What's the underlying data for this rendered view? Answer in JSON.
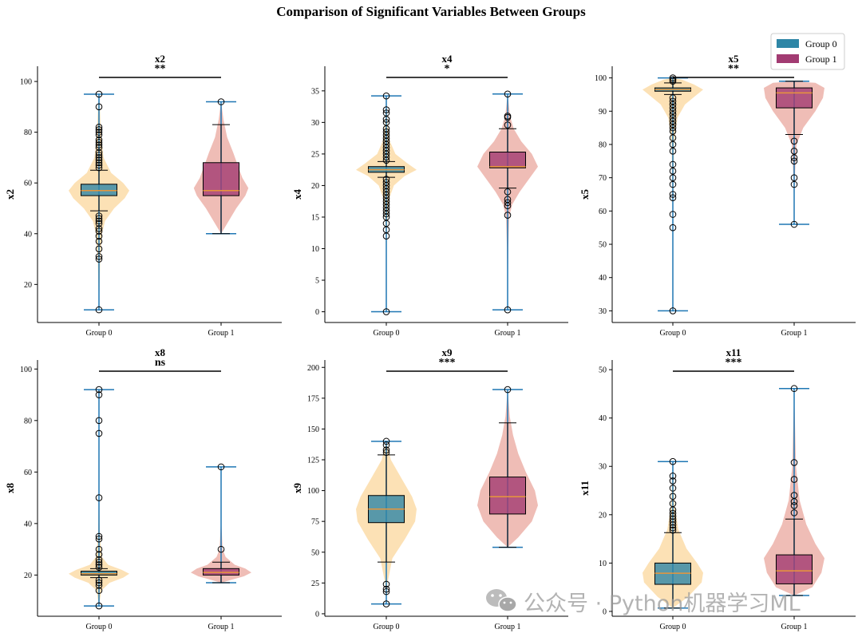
{
  "suptitle": "Comparison of Significant Variables Between Groups",
  "legend": [
    {
      "label": "Group 0",
      "color": "#2e86a6"
    },
    {
      "label": "Group 1",
      "color": "#a23b72"
    }
  ],
  "colors": {
    "violin0": "#fbd79c",
    "violin1": "#e9a79d",
    "box0": "#2e86a6",
    "box1": "#a23b72",
    "median": "#e8963b",
    "whisker": "#1f77b4"
  },
  "watermark": "公众号 · Python机器学习ML",
  "chart_data": [
    {
      "type": "violin+box",
      "title": "x2",
      "ylabel": "x2",
      "significance": "**",
      "categories": [
        "Group 0",
        "Group 1"
      ],
      "ylim": [
        5,
        106
      ],
      "yticks": [
        20,
        40,
        60,
        80,
        100
      ],
      "groups": [
        {
          "name": "Group 0",
          "min": 10,
          "q1": 55,
          "median": 57,
          "q3": 59.5,
          "max": 95,
          "whisker_low": 49,
          "whisker_high": 65,
          "outliers": [
            10,
            30,
            31,
            34,
            37,
            39,
            41,
            42,
            44,
            45,
            46,
            47,
            66,
            67,
            68,
            69,
            70,
            71,
            72,
            74,
            75,
            76,
            77,
            79,
            80,
            81,
            82,
            90,
            95
          ],
          "density": [
            [
              10,
              0.0
            ],
            [
              20,
              0.02
            ],
            [
              30,
              0.04
            ],
            [
              40,
              0.1
            ],
            [
              45,
              0.2
            ],
            [
              50,
              0.5
            ],
            [
              54,
              0.85
            ],
            [
              57,
              1.0
            ],
            [
              60,
              0.8
            ],
            [
              64,
              0.4
            ],
            [
              70,
              0.15
            ],
            [
              80,
              0.06
            ],
            [
              90,
              0.03
            ],
            [
              95,
              0.0
            ]
          ]
        },
        {
          "name": "Group 1",
          "min": 40,
          "q1": 55,
          "median": 57,
          "q3": 68,
          "max": 92,
          "whisker_low": 40,
          "whisker_high": 83,
          "outliers": [
            92
          ],
          "density": [
            [
              40,
              0.0
            ],
            [
              45,
              0.25
            ],
            [
              50,
              0.5
            ],
            [
              55,
              0.8
            ],
            [
              58,
              0.9
            ],
            [
              62,
              0.7
            ],
            [
              67,
              0.55
            ],
            [
              72,
              0.4
            ],
            [
              78,
              0.2
            ],
            [
              85,
              0.08
            ],
            [
              92,
              0.0
            ]
          ]
        }
      ]
    },
    {
      "type": "violin+box",
      "title": "x4",
      "ylabel": "x4",
      "significance": "*",
      "categories": [
        "Group 0",
        "Group 1"
      ],
      "ylim": [
        -1.7,
        38.9
      ],
      "yticks": [
        0,
        5,
        10,
        15,
        20,
        25,
        30,
        35
      ],
      "groups": [
        {
          "name": "Group 0",
          "min": 0,
          "q1": 22.1,
          "median": 22.5,
          "q3": 23,
          "max": 34.2,
          "whisker_low": 21.3,
          "whisker_high": 23.8,
          "outliers": [
            0,
            12,
            13,
            14,
            15,
            15.5,
            16,
            16.5,
            17,
            17.5,
            18,
            18.5,
            19,
            19.5,
            20,
            20.5,
            21,
            24,
            24.5,
            25,
            25.5,
            26,
            26.5,
            27,
            27.5,
            28,
            28.5,
            29,
            30,
            30.5,
            31.5,
            32,
            34.2
          ],
          "density": [
            [
              0,
              0.0
            ],
            [
              10,
              0.01
            ],
            [
              15,
              0.04
            ],
            [
              18,
              0.1
            ],
            [
              20,
              0.25
            ],
            [
              21.5,
              0.6
            ],
            [
              22.5,
              1.0
            ],
            [
              23.5,
              0.7
            ],
            [
              25,
              0.3
            ],
            [
              27,
              0.12
            ],
            [
              30,
              0.04
            ],
            [
              34.2,
              0.0
            ]
          ]
        },
        {
          "name": "Group 1",
          "min": 0.3,
          "q1": 22.8,
          "median": 23,
          "q3": 25.3,
          "max": 34.5,
          "whisker_low": 19.6,
          "whisker_high": 29,
          "outliers": [
            0.3,
            15.3,
            16.8,
            17.3,
            17.8,
            19,
            29.6,
            30.8,
            31,
            34.5
          ],
          "density": [
            [
              0.3,
              0.0
            ],
            [
              10,
              0.02
            ],
            [
              15,
              0.05
            ],
            [
              17,
              0.15
            ],
            [
              19,
              0.4
            ],
            [
              21,
              0.7
            ],
            [
              23,
              1.0
            ],
            [
              25,
              0.8
            ],
            [
              27,
              0.45
            ],
            [
              29,
              0.2
            ],
            [
              31,
              0.08
            ],
            [
              34.5,
              0.0
            ]
          ]
        }
      ]
    },
    {
      "type": "violin+box",
      "title": "x5",
      "ylabel": "x5",
      "significance": "**",
      "categories": [
        "Group 0",
        "Group 1"
      ],
      "ylim": [
        26.5,
        103.5
      ],
      "yticks": [
        30,
        40,
        50,
        60,
        70,
        80,
        90,
        100
      ],
      "groups": [
        {
          "name": "Group 0",
          "min": 30,
          "q1": 96,
          "median": 96.5,
          "q3": 97,
          "max": 100,
          "whisker_low": 95,
          "whisker_high": 98.5,
          "outliers": [
            30,
            55,
            59,
            64,
            65,
            68,
            70,
            72,
            74,
            78,
            80,
            82,
            84,
            85,
            86,
            87,
            88,
            89,
            90,
            91,
            92,
            93,
            94,
            99,
            99.5,
            100
          ],
          "density": [
            [
              30,
              0.0
            ],
            [
              60,
              0.01
            ],
            [
              80,
              0.04
            ],
            [
              88,
              0.15
            ],
            [
              92,
              0.4
            ],
            [
              95,
              0.8
            ],
            [
              96.5,
              1.0
            ],
            [
              98,
              0.7
            ],
            [
              99.5,
              0.3
            ],
            [
              100,
              0.0
            ]
          ]
        },
        {
          "name": "Group 1",
          "min": 56,
          "q1": 91,
          "median": 95.5,
          "q3": 97,
          "max": 99,
          "whisker_low": 83,
          "whisker_high": 99,
          "outliers": [
            56,
            68,
            70,
            75,
            76,
            78,
            81
          ],
          "density": [
            [
              56,
              0.0
            ],
            [
              70,
              0.02
            ],
            [
              80,
              0.08
            ],
            [
              85,
              0.3
            ],
            [
              90,
              0.7
            ],
            [
              94,
              0.95
            ],
            [
              97,
              1.0
            ],
            [
              98.5,
              0.7
            ],
            [
              99,
              0.0
            ]
          ]
        }
      ]
    },
    {
      "type": "violin+box",
      "title": "x8",
      "ylabel": "x8",
      "significance": "ns",
      "categories": [
        "Group 0",
        "Group 1"
      ],
      "ylim": [
        4,
        103.5
      ],
      "yticks": [
        20,
        40,
        60,
        80,
        100
      ],
      "groups": [
        {
          "name": "Group 0",
          "min": 8,
          "q1": 20,
          "median": 20.5,
          "q3": 21.5,
          "max": 92,
          "whisker_low": 19,
          "whisker_high": 22.5,
          "outliers": [
            8,
            14,
            16,
            17,
            18,
            23,
            24,
            25,
            26,
            28,
            30,
            34,
            35,
            50,
            75,
            80,
            90,
            92
          ],
          "density": [
            [
              8,
              0.0
            ],
            [
              14,
              0.08
            ],
            [
              17,
              0.35
            ],
            [
              19,
              0.8
            ],
            [
              20.5,
              1.0
            ],
            [
              22,
              0.75
            ],
            [
              24,
              0.3
            ],
            [
              27,
              0.1
            ],
            [
              35,
              0.03
            ],
            [
              50,
              0.01
            ],
            [
              92,
              0.0
            ]
          ]
        },
        {
          "name": "Group 1",
          "min": 17,
          "q1": 20,
          "median": 21,
          "q3": 22.5,
          "max": 62,
          "whisker_low": 17,
          "whisker_high": 25,
          "outliers": [
            30,
            62
          ],
          "density": [
            [
              17,
              0.0
            ],
            [
              18,
              0.3
            ],
            [
              19.5,
              0.75
            ],
            [
              21,
              1.0
            ],
            [
              22.5,
              0.8
            ],
            [
              24,
              0.45
            ],
            [
              27,
              0.15
            ],
            [
              30,
              0.05
            ],
            [
              40,
              0.01
            ],
            [
              62,
              0.0
            ]
          ]
        }
      ]
    },
    {
      "type": "violin+box",
      "title": "x9",
      "ylabel": "x9",
      "significance": "***",
      "categories": [
        "Group 0",
        "Group 1"
      ],
      "ylim": [
        -2,
        206
      ],
      "yticks": [
        0,
        25,
        50,
        75,
        100,
        125,
        150,
        175,
        200
      ],
      "groups": [
        {
          "name": "Group 0",
          "min": 8,
          "q1": 74,
          "median": 85,
          "q3": 96,
          "max": 140,
          "whisker_low": 42,
          "whisker_high": 129,
          "outliers": [
            8,
            18,
            20,
            24,
            131,
            133,
            137,
            140
          ],
          "density": [
            [
              8,
              0.0
            ],
            [
              25,
              0.04
            ],
            [
              45,
              0.2
            ],
            [
              60,
              0.6
            ],
            [
              75,
              0.95
            ],
            [
              85,
              1.0
            ],
            [
              95,
              0.85
            ],
            [
              110,
              0.5
            ],
            [
              125,
              0.15
            ],
            [
              140,
              0.0
            ]
          ]
        },
        {
          "name": "Group 1",
          "min": 54,
          "q1": 81,
          "median": 95,
          "q3": 111,
          "max": 182,
          "whisker_low": 54,
          "whisker_high": 155,
          "outliers": [
            182
          ],
          "density": [
            [
              54,
              0.0
            ],
            [
              62,
              0.35
            ],
            [
              75,
              0.8
            ],
            [
              88,
              1.0
            ],
            [
              100,
              0.9
            ],
            [
              115,
              0.6
            ],
            [
              130,
              0.35
            ],
            [
              145,
              0.18
            ],
            [
              160,
              0.07
            ],
            [
              182,
              0.0
            ]
          ]
        }
      ]
    },
    {
      "type": "violin+box",
      "title": "x11",
      "ylabel": "x11",
      "significance": "***",
      "categories": [
        "Group 0",
        "Group 1"
      ],
      "ylim": [
        -1,
        52
      ],
      "yticks": [
        0,
        10,
        20,
        30,
        40,
        50
      ],
      "groups": [
        {
          "name": "Group 0",
          "min": 0.7,
          "q1": 5.6,
          "median": 7.9,
          "q3": 10,
          "max": 31,
          "whisker_low": 0.7,
          "whisker_high": 16.3,
          "outliers": [
            16.8,
            17.3,
            17.9,
            18.5,
            19.1,
            19.7,
            20.3,
            21,
            22.3,
            23.8,
            25.5,
            27,
            28,
            31
          ],
          "density": [
            [
              0.7,
              0.0
            ],
            [
              3,
              0.5
            ],
            [
              6,
              0.95
            ],
            [
              8,
              1.0
            ],
            [
              10,
              0.8
            ],
            [
              13,
              0.45
            ],
            [
              17,
              0.18
            ],
            [
              22,
              0.06
            ],
            [
              31,
              0.0
            ]
          ]
        },
        {
          "name": "Group 1",
          "min": 3.3,
          "q1": 5.7,
          "median": 8.4,
          "q3": 11.7,
          "max": 46.1,
          "whisker_low": 3.3,
          "whisker_high": 19.1,
          "outliers": [
            20.4,
            21.9,
            22.7,
            24,
            27.3,
            30.8,
            46.1
          ],
          "density": [
            [
              3.3,
              0.0
            ],
            [
              5,
              0.6
            ],
            [
              8,
              0.9
            ],
            [
              11,
              1.0
            ],
            [
              14,
              0.7
            ],
            [
              18,
              0.4
            ],
            [
              23,
              0.18
            ],
            [
              30,
              0.06
            ],
            [
              46.1,
              0.0
            ]
          ]
        }
      ]
    }
  ]
}
